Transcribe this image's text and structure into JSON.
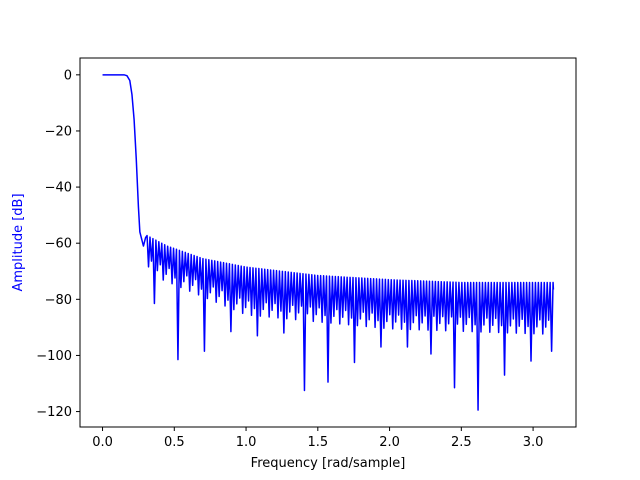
{
  "chart_data": {
    "type": "line",
    "title": "",
    "xlabel": "Frequency [rad/sample]",
    "ylabel": "Amplitude [dB]",
    "xlim": [
      -0.157,
      3.299
    ],
    "ylim": [
      -125.5,
      6.0
    ],
    "xticks": [
      0.0,
      0.5,
      1.0,
      1.5,
      2.0,
      2.5,
      3.0
    ],
    "xtick_labels": [
      "0.0",
      "0.5",
      "1.0",
      "1.5",
      "2.0",
      "2.5",
      "3.0"
    ],
    "yticks": [
      0,
      -20,
      -40,
      -60,
      -80,
      -100,
      -120
    ],
    "ytick_labels": [
      "0",
      "−20",
      "−40",
      "−60",
      "−80",
      "−100",
      "−120"
    ],
    "grid": false,
    "colors": {
      "line": "#0000ff",
      "ylabel": "#0000ff",
      "axes": "#000000"
    },
    "series": [
      {
        "name": "",
        "x": [
          0.0,
          0.05,
          0.1,
          0.15,
          0.17,
          0.19,
          0.205,
          0.22,
          0.235,
          0.25,
          0.26,
          0.27,
          0.285,
          0.3
        ],
        "values": [
          0,
          0,
          0,
          0,
          -0.3,
          -2,
          -7,
          -16,
          -30,
          -47,
          -56,
          -58,
          -61,
          -58
        ]
      }
    ],
    "ripple": {
      "start": 0.3,
      "end": 3.1416,
      "spacing": 0.0205,
      "envelope": [
        [
          0.3,
          -57
        ],
        [
          0.45,
          -61
        ],
        [
          0.7,
          -65.5
        ],
        [
          1.0,
          -68.5
        ],
        [
          1.5,
          -71.5
        ],
        [
          2.0,
          -73
        ],
        [
          2.5,
          -74
        ],
        [
          3.1416,
          -74
        ]
      ],
      "null_depth": [
        [
          0.3,
          -68
        ],
        [
          1.0,
          -83
        ],
        [
          2.0,
          -88
        ],
        [
          3.1416,
          -90
        ]
      ],
      "deep_nulls": [
        {
          "x": 0.355,
          "y": -81.5
        },
        {
          "x": 0.535,
          "y": -101.5
        },
        {
          "x": 0.72,
          "y": -98.5
        },
        {
          "x": 0.9,
          "y": -91.5
        },
        {
          "x": 1.08,
          "y": -93
        },
        {
          "x": 1.255,
          "y": -92
        },
        {
          "x": 1.4,
          "y": -112.5
        },
        {
          "x": 1.575,
          "y": -109.5
        },
        {
          "x": 1.76,
          "y": -102.5
        },
        {
          "x": 1.935,
          "y": -97
        },
        {
          "x": 2.115,
          "y": -97
        },
        {
          "x": 2.29,
          "y": -99.5
        },
        {
          "x": 2.445,
          "y": -111.5
        },
        {
          "x": 2.62,
          "y": -119.5
        },
        {
          "x": 2.795,
          "y": -107
        },
        {
          "x": 2.98,
          "y": -102
        },
        {
          "x": 3.135,
          "y": -98.5
        }
      ],
      "end_value": -76.5
    }
  }
}
